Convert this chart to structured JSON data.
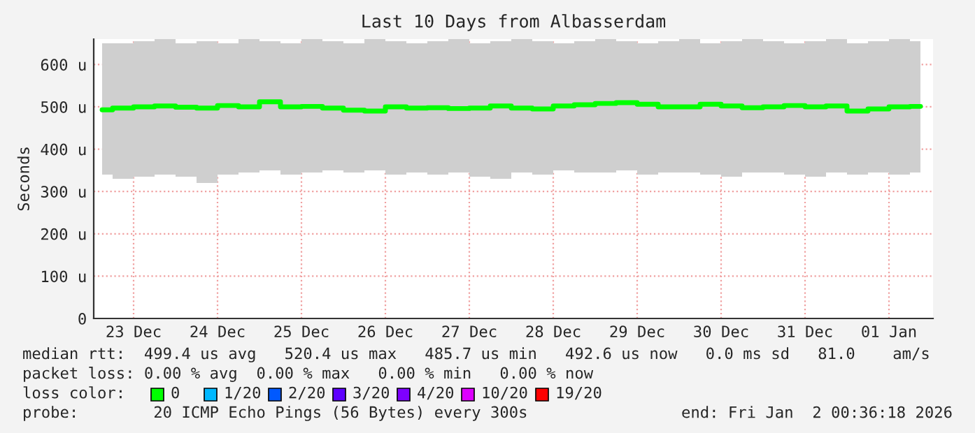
{
  "chart_data": {
    "type": "step",
    "title": "Last 10 Days from Albasserdam",
    "ylabel": "Seconds",
    "x": [
      "2025-12-23T03:00",
      "2025-12-23T09:00",
      "2025-12-23T15:00",
      "2025-12-23T21:00",
      "2025-12-24T03:00",
      "2025-12-24T09:00",
      "2025-12-24T15:00",
      "2025-12-24T21:00",
      "2025-12-25T03:00",
      "2025-12-25T09:00",
      "2025-12-25T15:00",
      "2025-12-25T21:00",
      "2025-12-26T03:00",
      "2025-12-26T09:00",
      "2025-12-26T15:00",
      "2025-12-26T21:00",
      "2025-12-27T03:00",
      "2025-12-27T09:00",
      "2025-12-27T15:00",
      "2025-12-27T21:00",
      "2025-12-28T03:00",
      "2025-12-28T09:00",
      "2025-12-28T15:00",
      "2025-12-28T21:00",
      "2025-12-29T03:00",
      "2025-12-29T09:00",
      "2025-12-29T15:00",
      "2025-12-29T21:00",
      "2025-12-30T03:00",
      "2025-12-30T09:00",
      "2025-12-30T15:00",
      "2025-12-30T21:00",
      "2025-12-31T03:00",
      "2025-12-31T09:00",
      "2025-12-31T15:00",
      "2025-12-31T21:00",
      "2026-01-01T03:00",
      "2026-01-01T09:00",
      "2026-01-01T15:00",
      "2026-01-01T21:00"
    ],
    "series": [
      {
        "color": "#00ff00",
        "values": [
          493,
          497,
          500,
          502,
          499,
          497,
          503,
          500,
          512,
          500,
          501,
          497,
          492,
          490,
          500,
          497,
          498,
          496,
          497,
          502,
          497,
          495,
          502,
          505,
          508,
          510,
          506,
          500,
          500,
          506,
          502,
          498,
          500,
          503,
          500,
          502,
          490,
          495,
          500,
          501
        ],
        "lower": [
          340,
          330,
          335,
          340,
          335,
          320,
          340,
          345,
          350,
          340,
          345,
          350,
          345,
          350,
          340,
          345,
          340,
          345,
          335,
          330,
          345,
          340,
          350,
          345,
          345,
          350,
          340,
          345,
          345,
          340,
          335,
          345,
          345,
          340,
          335,
          345,
          340,
          345,
          340,
          345
        ],
        "upper": [
          650,
          650,
          655,
          660,
          650,
          655,
          650,
          660,
          655,
          650,
          660,
          655,
          650,
          660,
          655,
          650,
          655,
          660,
          650,
          655,
          660,
          655,
          650,
          655,
          660,
          655,
          650,
          655,
          660,
          650,
          655,
          660,
          655,
          650,
          655,
          660,
          650,
          655,
          660,
          655
        ]
      }
    ],
    "xlim": [
      "2025-12-23T00:36",
      "2026-01-02T00:36"
    ],
    "xticks": [
      {
        "value": "2025-12-23T12:00",
        "label": "23 Dec"
      },
      {
        "value": "2025-12-24T12:00",
        "label": "24 Dec"
      },
      {
        "value": "2025-12-25T12:00",
        "label": "25 Dec"
      },
      {
        "value": "2025-12-26T12:00",
        "label": "26 Dec"
      },
      {
        "value": "2025-12-27T12:00",
        "label": "27 Dec"
      },
      {
        "value": "2025-12-28T12:00",
        "label": "28 Dec"
      },
      {
        "value": "2025-12-29T12:00",
        "label": "29 Dec"
      },
      {
        "value": "2025-12-30T12:00",
        "label": "30 Dec"
      },
      {
        "value": "2025-12-31T12:00",
        "label": "31 Dec"
      },
      {
        "value": "2026-01-01T12:00",
        "label": "01 Jan"
      }
    ],
    "ylim": [
      0,
      660
    ],
    "yticks": [
      0,
      {
        "value": 100,
        "label": "100 u"
      },
      {
        "value": 200,
        "label": "200 u"
      },
      {
        "value": 300,
        "label": "300 u"
      },
      {
        "value": 400,
        "label": "400 u"
      },
      {
        "value": 500,
        "label": "500 u"
      },
      {
        "value": 600,
        "label": "600 u"
      }
    ],
    "grid": true,
    "annotations": [
      "median rtt:  499.4 us avg   520.4 us max   485.7 us min   492.6 us now   0.0 ms sd   81.0    am/s",
      "packet loss: 0.00 % avg  0.00 % max   0.00 % min   0.00 % now",
      "loss color:",
      "0",
      "1/20",
      "2/20",
      "3/20",
      "4/20",
      "10/20",
      "19/20",
      "probe:        20 ICMP Echo Pings (56 Bytes) every 300s",
      "end: Fri Jan  2 00:36:18 2026"
    ]
  }
}
